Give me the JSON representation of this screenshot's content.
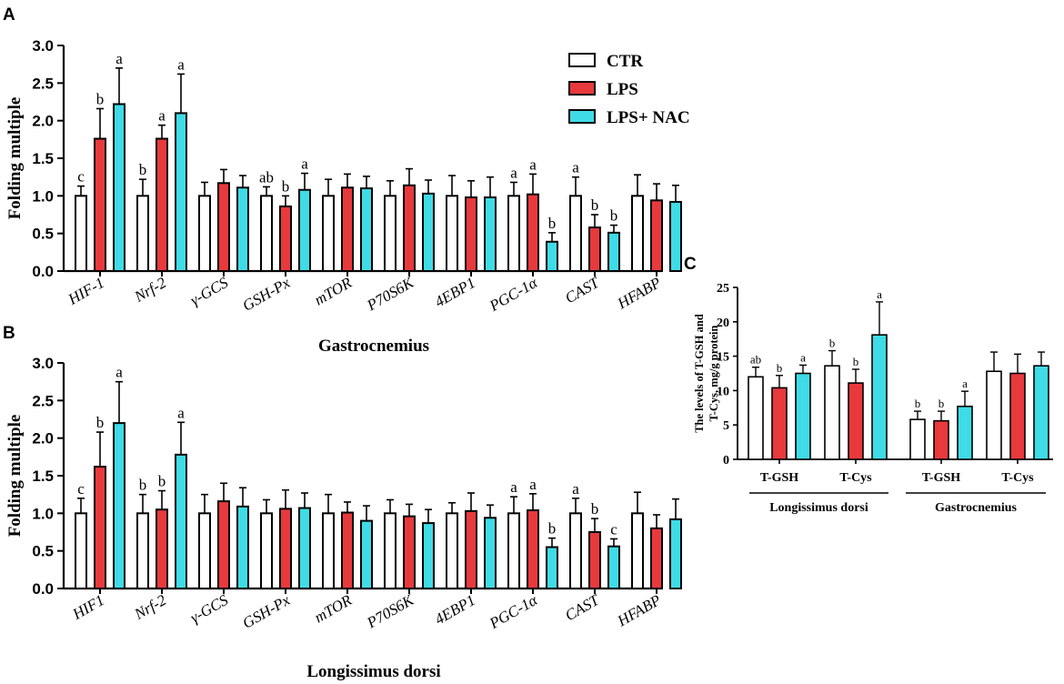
{
  "colors": {
    "CTR": "#ffffff",
    "LPS": "#e8393d",
    "LPS+ NAC": "#3fdbe6"
  },
  "legend": [
    "CTR",
    "LPS",
    "LPS+ NAC"
  ],
  "chart_data": [
    {
      "panel": "A",
      "type": "bar",
      "xlabel": "Gastrocnemius",
      "ylabel": "Folding multiple",
      "ylim": [
        0,
        3.0
      ],
      "yticks": [
        "0.0",
        "0.5",
        "1.0",
        "1.5",
        "2.0",
        "2.5",
        "3.0"
      ],
      "categories": [
        "HIF-1",
        "Nrf-2",
        "γ-GCS",
        "GSH-Px",
        "mTOR",
        "P70S6K",
        "4EBP1",
        "PGC-1α",
        "CAST",
        "HFABP"
      ],
      "series": [
        {
          "name": "CTR",
          "values": [
            1.0,
            1.0,
            1.0,
            1.0,
            1.0,
            1.0,
            1.0,
            1.0,
            1.0,
            1.0
          ],
          "errors": [
            0.13,
            0.22,
            0.18,
            0.12,
            0.22,
            0.2,
            0.27,
            0.18,
            0.25,
            0.28
          ],
          "letters": [
            "c",
            "b",
            "",
            "ab",
            "",
            "",
            "",
            "a",
            "a",
            ""
          ]
        },
        {
          "name": "LPS",
          "values": [
            1.76,
            1.76,
            1.17,
            0.86,
            1.11,
            1.14,
            0.98,
            1.02,
            0.58,
            0.94
          ],
          "errors": [
            0.4,
            0.18,
            0.18,
            0.14,
            0.18,
            0.22,
            0.22,
            0.27,
            0.17,
            0.22
          ],
          "letters": [
            "b",
            "a",
            "",
            "b",
            "",
            "",
            "",
            "a",
            "b",
            ""
          ]
        },
        {
          "name": "LPS+ NAC",
          "values": [
            2.22,
            2.1,
            1.11,
            1.08,
            1.1,
            1.03,
            0.98,
            0.39,
            0.51,
            0.92
          ],
          "errors": [
            0.48,
            0.52,
            0.16,
            0.22,
            0.16,
            0.18,
            0.27,
            0.12,
            0.1,
            0.22
          ],
          "letters": [
            "a",
            "a",
            "",
            "a",
            "",
            "",
            "",
            "b",
            "b",
            ""
          ]
        }
      ]
    },
    {
      "panel": "B",
      "type": "bar",
      "xlabel": "Longissimus dorsi",
      "ylabel": "Folding multiple",
      "ylim": [
        0,
        3.0
      ],
      "yticks": [
        "0.0",
        "0.5",
        "1.0",
        "1.5",
        "2.0",
        "2.5",
        "3.0"
      ],
      "categories": [
        "HIF1",
        "Nrf-2",
        "γ-GCS",
        "GSH-Px",
        "mTOR",
        "P70S6K",
        "4EBP1",
        "PGC-1α",
        "CAST",
        "HFABP"
      ],
      "series": [
        {
          "name": "CTR",
          "values": [
            1.0,
            1.0,
            1.0,
            1.0,
            1.0,
            1.0,
            1.0,
            1.0,
            1.0,
            1.0
          ],
          "errors": [
            0.2,
            0.25,
            0.25,
            0.18,
            0.25,
            0.18,
            0.14,
            0.22,
            0.2,
            0.28
          ],
          "letters": [
            "c",
            "b",
            "",
            "",
            "",
            "",
            "",
            "a",
            "a",
            ""
          ]
        },
        {
          "name": "LPS",
          "values": [
            1.62,
            1.05,
            1.16,
            1.06,
            1.01,
            0.96,
            1.03,
            1.04,
            0.75,
            0.8
          ],
          "errors": [
            0.46,
            0.25,
            0.24,
            0.25,
            0.14,
            0.16,
            0.24,
            0.22,
            0.18,
            0.18
          ],
          "letters": [
            "b",
            "b",
            "",
            "",
            "",
            "",
            "",
            "a",
            "b",
            ""
          ]
        },
        {
          "name": "LPS+ NAC",
          "values": [
            2.2,
            1.78,
            1.09,
            1.07,
            0.9,
            0.87,
            0.94,
            0.55,
            0.56,
            0.92
          ],
          "errors": [
            0.55,
            0.43,
            0.25,
            0.2,
            0.2,
            0.18,
            0.17,
            0.12,
            0.1,
            0.27
          ],
          "letters": [
            "a",
            "a",
            "",
            "",
            "",
            "",
            "",
            "b",
            "c",
            ""
          ]
        }
      ]
    },
    {
      "panel": "C",
      "type": "bar",
      "ylabel": "The levels of T-GSH and T-Cys, mg/g protein",
      "ylim": [
        0,
        25
      ],
      "yticks": [
        "0",
        "5",
        "10",
        "15",
        "20",
        "25"
      ],
      "categories": [
        "T-GSH",
        "T-Cys",
        "T-GSH",
        "T-Cys"
      ],
      "groups": [
        "Longissimus dorsi",
        "Gastrocnemius"
      ],
      "series": [
        {
          "name": "CTR",
          "values": [
            12.0,
            13.6,
            5.8,
            12.8
          ],
          "errors": [
            1.4,
            2.2,
            1.2,
            2.8
          ],
          "letters": [
            "ab",
            "b",
            "b",
            ""
          ]
        },
        {
          "name": "LPS",
          "values": [
            10.4,
            11.1,
            5.6,
            12.5
          ],
          "errors": [
            1.8,
            2.0,
            1.4,
            2.8
          ],
          "letters": [
            "b",
            "b",
            "b",
            ""
          ]
        },
        {
          "name": "LPS+ NAC",
          "values": [
            12.5,
            18.1,
            7.7,
            13.6
          ],
          "errors": [
            1.2,
            4.8,
            2.2,
            2.0
          ],
          "letters": [
            "a",
            "a",
            "a",
            ""
          ]
        }
      ]
    }
  ]
}
